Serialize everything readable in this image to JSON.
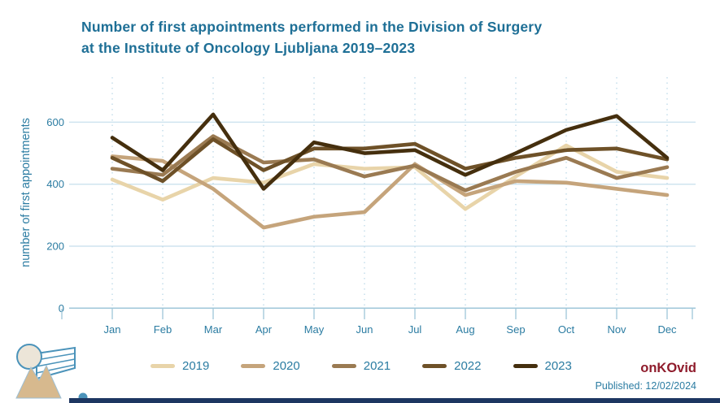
{
  "header": {
    "title_line1": "Number of first appointments performed in the Division of Surgery",
    "title_line2": "at the Institute of Oncology Ljubljana 2019–2023"
  },
  "colors": {
    "title_text": "#1e6f96",
    "axis_text": "#2b7ca2",
    "gridline": "#cfe4ef",
    "dashed_gridline": "#bcd9e8",
    "axis_line": "#9fc6d9",
    "brand_red": "#8f1c2c",
    "footer_bar_navy": "#1d3661",
    "logo_blue": "#4b93ba",
    "logo_tan": "#d7b98e"
  },
  "chart_data": {
    "type": "line",
    "title": "Number of first appointments performed in the Division of Surgery at the Institute of Oncology Ljubljana 2019–2023",
    "xlabel": "",
    "ylabel": "number of first appointments",
    "categories": [
      "Jan",
      "Feb",
      "Mar",
      "Apr",
      "May",
      "Jun",
      "Jul",
      "Aug",
      "Sep",
      "Oct",
      "Nov",
      "Dec"
    ],
    "y_ticks": [
      0,
      200,
      400,
      600
    ],
    "ylim": [
      0,
      660
    ],
    "grid": "horizontal solid + vertical dashed",
    "legend_position": "bottom",
    "series": [
      {
        "name": "2019",
        "color": "#e8d4a9",
        "values": [
          415,
          350,
          420,
          405,
          465,
          450,
          455,
          320,
          425,
          525,
          440,
          420
        ]
      },
      {
        "name": "2020",
        "color": "#c5a47b",
        "values": [
          490,
          475,
          385,
          260,
          295,
          310,
          465,
          365,
          410,
          405,
          385,
          365
        ]
      },
      {
        "name": "2021",
        "color": "#9a7a52",
        "values": [
          450,
          430,
          555,
          470,
          480,
          425,
          460,
          380,
          440,
          485,
          420,
          455
        ]
      },
      {
        "name": "2022",
        "color": "#6e5128",
        "values": [
          485,
          410,
          545,
          445,
          515,
          515,
          530,
          450,
          485,
          510,
          515,
          480
        ]
      },
      {
        "name": "2023",
        "color": "#452f0e",
        "values": [
          550,
          445,
          625,
          385,
          535,
          500,
          510,
          430,
          500,
          575,
          620,
          485
        ]
      }
    ]
  },
  "footer": {
    "brand": "onKOvid",
    "published": "Published: 12/02/2024",
    "logo": "onkovid-logo"
  }
}
